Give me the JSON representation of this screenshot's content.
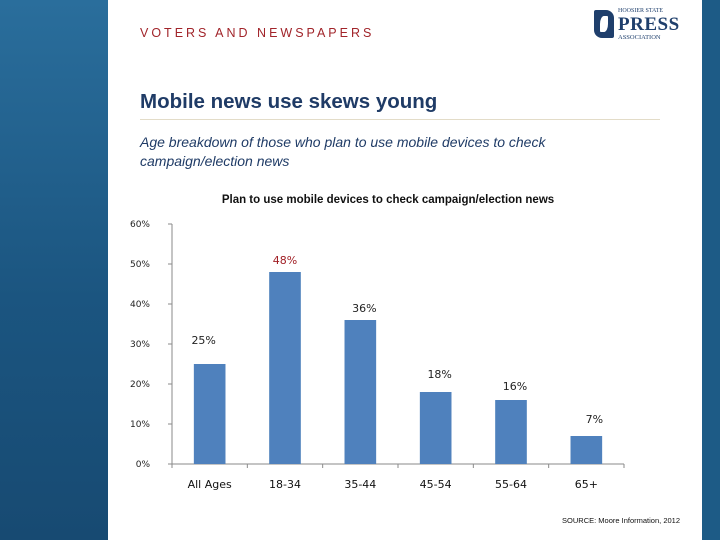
{
  "header": {
    "section_label": "VOTERS AND NEWSPAPERS"
  },
  "logo": {
    "line1": "HOOSIER STATE",
    "line2": "PRESS",
    "line3": "ASSOCIATION"
  },
  "slide": {
    "title": "Mobile news use skews young",
    "subtitle": "Age breakdown of those who plan to use mobile devices to check campaign/election news",
    "source": "SOURCE: Moore Information, 2012"
  },
  "colors": {
    "bar": "#4f81bd",
    "highlight_label": "#a01e24",
    "label": "#222222",
    "frame": "#1d5b86"
  },
  "chart_data": {
    "type": "bar",
    "title": "Plan to use mobile devices to check campaign/election news",
    "categories": [
      "All Ages",
      "18-34",
      "35-44",
      "45-54",
      "55-64",
      "65+"
    ],
    "values": [
      25,
      48,
      36,
      18,
      16,
      7
    ],
    "data_labels": [
      "25%",
      "48%",
      "36%",
      "18%",
      "16%",
      "7%"
    ],
    "highlight_index": 1,
    "ylim": [
      0,
      60
    ],
    "yticks": [
      0,
      10,
      20,
      30,
      40,
      50,
      60
    ],
    "ytick_labels": [
      "0%",
      "10%",
      "20%",
      "30%",
      "40%",
      "50%",
      "60%"
    ],
    "grid": false,
    "legend": "none"
  }
}
